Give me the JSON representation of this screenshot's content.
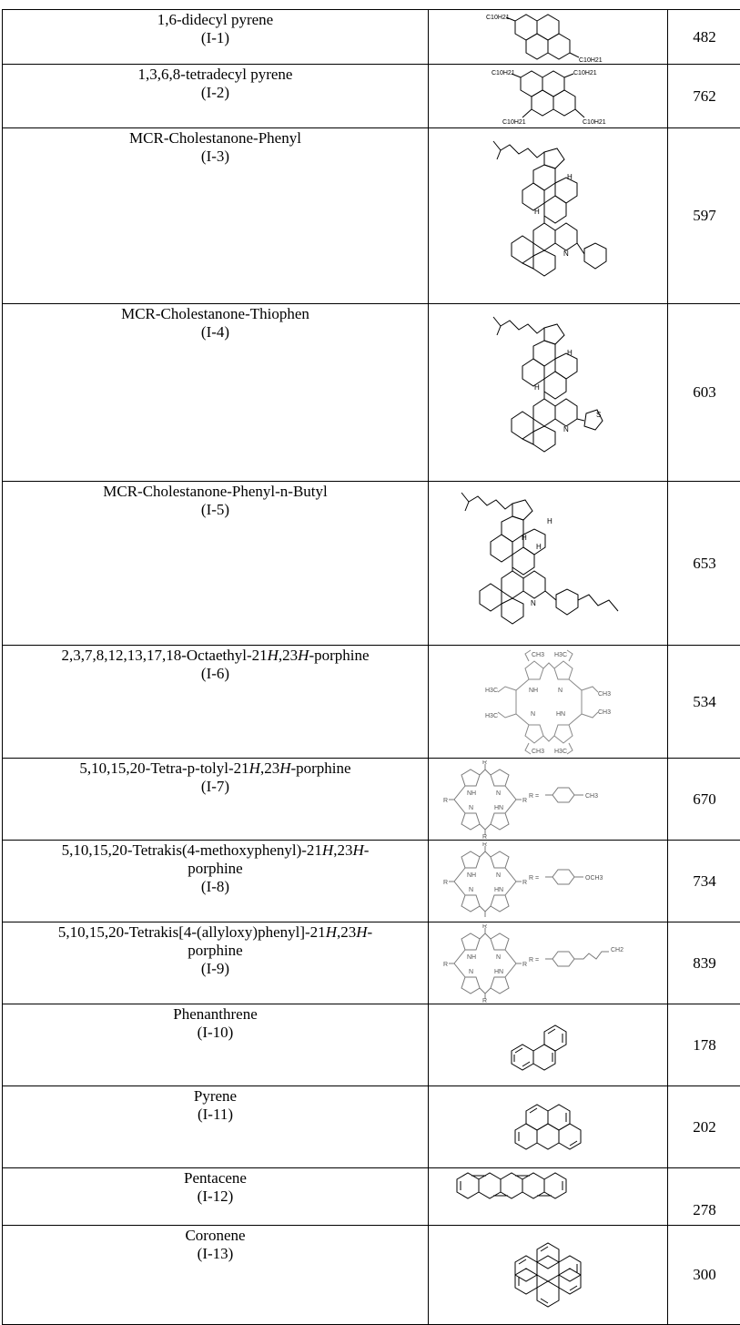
{
  "rows": [
    {
      "name": "1,6-didecyl pyrene",
      "id": "(I-1)",
      "mw": "482",
      "icon": "didecyl-pyrene-structure"
    },
    {
      "name": "1,3,6,8-tetradecyl pyrene",
      "id": "(I-2)",
      "mw": "762",
      "icon": "tetradecyl-pyrene-structure"
    },
    {
      "name": "MCR-Cholestanone-Phenyl",
      "id": "(I-3)",
      "mw": "597",
      "icon": "cholestanone-phenyl-structure"
    },
    {
      "name": "MCR-Cholestanone-Thiophen",
      "id": "(I-4)",
      "mw": "603",
      "icon": "cholestanone-thiophen-structure"
    },
    {
      "name": "MCR-Cholestanone-Phenyl-n-Butyl",
      "id": "(I-5)",
      "mw": "653",
      "icon": "cholestanone-phenyl-butyl-structure"
    },
    {
      "name_pre": "2,3,7,8,12,13,17,18-Octaethyl-21",
      "name_mid": ",23",
      "name_post": "-porphine",
      "id": "(I-6)",
      "mw": "534",
      "icon": "octaethyl-porphine-structure"
    },
    {
      "name_pre": "5,10,15,20-Tetra-p-tolyl-21",
      "name_mid": ",23",
      "name_post": "-porphine",
      "id": "(I-7)",
      "mw": "670",
      "icon": "tetra-tolyl-porphine-structure"
    },
    {
      "name_pre": "5,10,15,20-Tetrakis(4-methoxyphenyl)-21",
      "name_mid": ",23",
      "name_post": "-",
      "name_line2": "porphine",
      "id": "(I-8)",
      "mw": "734",
      "icon": "methoxyphenyl-porphine-structure"
    },
    {
      "name_pre": "5,10,15,20-Tetrakis[4-(allyloxy)phenyl]-21",
      "name_mid": ",23",
      "name_post": "-",
      "name_line2": "porphine",
      "id": "(I-9)",
      "mw": "839",
      "icon": "allyloxyphenyl-porphine-structure"
    },
    {
      "name": "Phenanthrene",
      "id": "(I-10)",
      "mw": "178",
      "icon": "phenanthrene-structure"
    },
    {
      "name": "Pyrene",
      "id": "(I-11)",
      "mw": "202",
      "icon": "pyrene-structure"
    },
    {
      "name": "Pentacene",
      "id": "(I-12)",
      "mw": "278",
      "icon": "pentacene-structure"
    },
    {
      "name": "Coronene",
      "id": "(I-13)",
      "mw": "300",
      "icon": "coronene-structure"
    }
  ],
  "italic_h": "H",
  "labels": {
    "c10h21": "C10H21",
    "nitrogen": "N",
    "sulfur": "S",
    "nh": "NH",
    "hn": "HN",
    "hydrogen": "H",
    "r": "R",
    "r_equals": "R =",
    "ch3": "CH3",
    "h3c": "H3C",
    "och3": "OCH3",
    "ch2": "CH2"
  }
}
